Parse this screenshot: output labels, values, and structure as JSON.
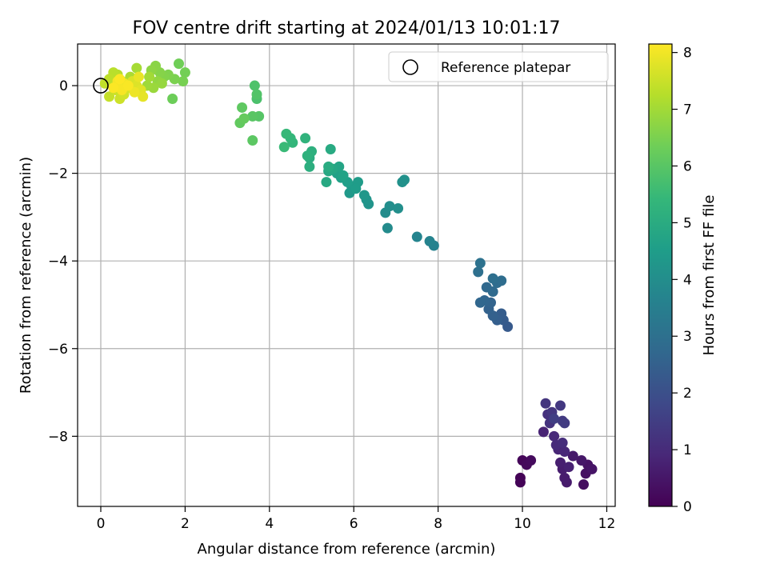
{
  "chart_data": {
    "type": "scatter",
    "title": "FOV centre drift starting at 2024/01/13 10:01:17",
    "xlabel": "Angular distance from reference (arcmin)",
    "ylabel": "Rotation from reference (arcmin)",
    "xlim": [
      -0.55,
      12.2
    ],
    "ylim": [
      -9.6,
      0.95
    ],
    "xticks": [
      0,
      2,
      4,
      6,
      8,
      10,
      12
    ],
    "yticks": [
      0,
      -2,
      -4,
      -6,
      -8
    ],
    "grid": true,
    "legend": {
      "position": "top-right",
      "entries": [
        {
          "label": "Reference platepar",
          "marker": "open-circle"
        }
      ]
    },
    "reference_point": {
      "x": 0.0,
      "y": 0.0
    },
    "colorbar": {
      "label": "Hours from first FF file",
      "colormap": "viridis",
      "range": [
        0,
        8.15
      ],
      "ticks": [
        0,
        1,
        2,
        3,
        4,
        5,
        6,
        7,
        8
      ]
    },
    "colormap_stops": [
      "#440154",
      "#482878",
      "#3e4989",
      "#31688e",
      "#26828e",
      "#1f9e89",
      "#35b779",
      "#6ece58",
      "#b5de2b",
      "#fde725"
    ],
    "points": [
      {
        "x": 9.95,
        "y": -8.95,
        "t": 0.05
      },
      {
        "x": 9.95,
        "y": -9.05,
        "t": 0.08
      },
      {
        "x": 10.0,
        "y": -8.55,
        "t": 0.12
      },
      {
        "x": 10.1,
        "y": -8.65,
        "t": 0.18
      },
      {
        "x": 10.2,
        "y": -8.55,
        "t": 0.22
      },
      {
        "x": 11.45,
        "y": -9.1,
        "t": 0.3
      },
      {
        "x": 11.5,
        "y": -8.85,
        "t": 0.35
      },
      {
        "x": 11.55,
        "y": -8.65,
        "t": 0.4
      },
      {
        "x": 11.65,
        "y": -8.75,
        "t": 0.45
      },
      {
        "x": 11.4,
        "y": -8.55,
        "t": 0.5
      },
      {
        "x": 11.2,
        "y": -8.45,
        "t": 0.55
      },
      {
        "x": 11.05,
        "y": -9.05,
        "t": 0.6
      },
      {
        "x": 11.0,
        "y": -8.95,
        "t": 0.62
      },
      {
        "x": 10.95,
        "y": -8.75,
        "t": 0.66
      },
      {
        "x": 10.9,
        "y": -8.6,
        "t": 0.7
      },
      {
        "x": 11.1,
        "y": -8.7,
        "t": 0.75
      },
      {
        "x": 10.5,
        "y": -7.9,
        "t": 0.8
      },
      {
        "x": 10.85,
        "y": -8.3,
        "t": 0.85
      },
      {
        "x": 11.0,
        "y": -8.35,
        "t": 0.9
      },
      {
        "x": 10.75,
        "y": -8.0,
        "t": 0.95
      },
      {
        "x": 10.8,
        "y": -8.2,
        "t": 1.0
      },
      {
        "x": 10.95,
        "y": -8.15,
        "t": 1.05
      },
      {
        "x": 10.7,
        "y": -7.6,
        "t": 1.1
      },
      {
        "x": 10.6,
        "y": -7.5,
        "t": 1.15
      },
      {
        "x": 10.65,
        "y": -7.7,
        "t": 1.2
      },
      {
        "x": 10.55,
        "y": -7.25,
        "t": 1.25
      },
      {
        "x": 10.7,
        "y": -7.45,
        "t": 1.3
      },
      {
        "x": 10.9,
        "y": -7.3,
        "t": 1.35
      },
      {
        "x": 10.95,
        "y": -7.65,
        "t": 1.4
      },
      {
        "x": 11.0,
        "y": -7.7,
        "t": 1.45
      },
      {
        "x": 10.75,
        "y": -7.6,
        "t": 1.5
      },
      {
        "x": 9.65,
        "y": -5.5,
        "t": 2.3
      },
      {
        "x": 9.55,
        "y": -5.35,
        "t": 2.35
      },
      {
        "x": 9.5,
        "y": -5.2,
        "t": 2.4
      },
      {
        "x": 9.4,
        "y": -5.35,
        "t": 2.45
      },
      {
        "x": 9.3,
        "y": -5.25,
        "t": 2.5
      },
      {
        "x": 9.2,
        "y": -5.1,
        "t": 2.55
      },
      {
        "x": 9.25,
        "y": -4.95,
        "t": 2.6
      },
      {
        "x": 9.1,
        "y": -4.9,
        "t": 2.65
      },
      {
        "x": 9.0,
        "y": -4.95,
        "t": 2.7
      },
      {
        "x": 9.15,
        "y": -4.6,
        "t": 2.75
      },
      {
        "x": 9.3,
        "y": -4.7,
        "t": 2.8
      },
      {
        "x": 9.4,
        "y": -4.5,
        "t": 2.85
      },
      {
        "x": 9.5,
        "y": -4.45,
        "t": 2.9
      },
      {
        "x": 9.3,
        "y": -4.4,
        "t": 2.95
      },
      {
        "x": 8.95,
        "y": -4.25,
        "t": 3.0
      },
      {
        "x": 9.0,
        "y": -4.05,
        "t": 3.05
      },
      {
        "x": 7.9,
        "y": -3.65,
        "t": 3.6
      },
      {
        "x": 7.8,
        "y": -3.55,
        "t": 3.65
      },
      {
        "x": 7.5,
        "y": -3.45,
        "t": 3.7
      },
      {
        "x": 6.8,
        "y": -3.25,
        "t": 3.9
      },
      {
        "x": 6.75,
        "y": -2.9,
        "t": 3.95
      },
      {
        "x": 6.85,
        "y": -2.75,
        "t": 4.0
      },
      {
        "x": 7.05,
        "y": -2.8,
        "t": 4.05
      },
      {
        "x": 7.15,
        "y": -2.2,
        "t": 4.1
      },
      {
        "x": 7.2,
        "y": -2.15,
        "t": 4.12
      },
      {
        "x": 6.35,
        "y": -2.7,
        "t": 4.2
      },
      {
        "x": 6.3,
        "y": -2.6,
        "t": 4.25
      },
      {
        "x": 6.25,
        "y": -2.5,
        "t": 4.3
      },
      {
        "x": 5.9,
        "y": -2.45,
        "t": 4.35
      },
      {
        "x": 5.95,
        "y": -2.3,
        "t": 4.4
      },
      {
        "x": 6.1,
        "y": -2.2,
        "t": 4.45
      },
      {
        "x": 6.05,
        "y": -2.35,
        "t": 4.5
      },
      {
        "x": 5.85,
        "y": -2.2,
        "t": 4.55
      },
      {
        "x": 5.7,
        "y": -2.1,
        "t": 4.6
      },
      {
        "x": 5.6,
        "y": -2.0,
        "t": 4.65
      },
      {
        "x": 5.75,
        "y": -2.05,
        "t": 4.7
      },
      {
        "x": 5.65,
        "y": -1.85,
        "t": 4.75
      },
      {
        "x": 5.5,
        "y": -1.9,
        "t": 4.8
      },
      {
        "x": 5.4,
        "y": -1.95,
        "t": 4.85
      },
      {
        "x": 5.35,
        "y": -2.2,
        "t": 4.9
      },
      {
        "x": 5.45,
        "y": -1.45,
        "t": 4.95
      },
      {
        "x": 5.4,
        "y": -1.85,
        "t": 5.0
      },
      {
        "x": 4.95,
        "y": -1.65,
        "t": 5.05
      },
      {
        "x": 4.95,
        "y": -1.85,
        "t": 5.1
      },
      {
        "x": 5.0,
        "y": -1.5,
        "t": 5.15
      },
      {
        "x": 4.9,
        "y": -1.6,
        "t": 5.2
      },
      {
        "x": 4.85,
        "y": -1.2,
        "t": 5.25
      },
      {
        "x": 4.55,
        "y": -1.3,
        "t": 5.35
      },
      {
        "x": 4.5,
        "y": -1.2,
        "t": 5.4
      },
      {
        "x": 4.4,
        "y": -1.1,
        "t": 5.45
      },
      {
        "x": 4.35,
        "y": -1.4,
        "t": 5.5
      },
      {
        "x": 3.7,
        "y": -0.3,
        "t": 5.8
      },
      {
        "x": 3.65,
        "y": 0.0,
        "t": 5.85
      },
      {
        "x": 3.7,
        "y": -0.2,
        "t": 5.9
      },
      {
        "x": 3.75,
        "y": -0.7,
        "t": 5.95
      },
      {
        "x": 3.6,
        "y": -0.7,
        "t": 6.0
      },
      {
        "x": 3.6,
        "y": -1.25,
        "t": 6.05
      },
      {
        "x": 3.35,
        "y": -0.5,
        "t": 6.1
      },
      {
        "x": 3.3,
        "y": -0.85,
        "t": 6.15
      },
      {
        "x": 3.4,
        "y": -0.75,
        "t": 6.2
      },
      {
        "x": 1.7,
        "y": -0.3,
        "t": 6.3
      },
      {
        "x": 1.85,
        "y": 0.5,
        "t": 6.35
      },
      {
        "x": 2.0,
        "y": 0.3,
        "t": 6.4
      },
      {
        "x": 1.95,
        "y": 0.1,
        "t": 6.45
      },
      {
        "x": 1.75,
        "y": 0.15,
        "t": 6.5
      },
      {
        "x": 1.6,
        "y": 0.25,
        "t": 6.55
      },
      {
        "x": 1.5,
        "y": 0.2,
        "t": 6.6
      },
      {
        "x": 1.4,
        "y": 0.3,
        "t": 6.65
      },
      {
        "x": 1.3,
        "y": 0.45,
        "t": 6.7
      },
      {
        "x": 1.2,
        "y": 0.35,
        "t": 6.75
      },
      {
        "x": 1.35,
        "y": 0.1,
        "t": 6.8
      },
      {
        "x": 1.45,
        "y": 0.05,
        "t": 6.85
      },
      {
        "x": 1.25,
        "y": -0.05,
        "t": 6.9
      },
      {
        "x": 1.1,
        "y": 0.0,
        "t": 6.95
      },
      {
        "x": 1.15,
        "y": 0.2,
        "t": 7.0
      },
      {
        "x": 0.85,
        "y": 0.4,
        "t": 7.05
      },
      {
        "x": 0.7,
        "y": 0.2,
        "t": 7.1
      },
      {
        "x": 0.6,
        "y": 0.05,
        "t": 7.15
      },
      {
        "x": 0.5,
        "y": 0.1,
        "t": 7.2
      },
      {
        "x": 0.4,
        "y": 0.25,
        "t": 7.25
      },
      {
        "x": 0.3,
        "y": 0.3,
        "t": 7.3
      },
      {
        "x": 0.2,
        "y": 0.15,
        "t": 7.35
      },
      {
        "x": 0.1,
        "y": 0.05,
        "t": 7.4
      },
      {
        "x": 0.2,
        "y": -0.25,
        "t": 7.45
      },
      {
        "x": 0.35,
        "y": -0.1,
        "t": 7.5
      },
      {
        "x": 0.45,
        "y": -0.3,
        "t": 7.55
      },
      {
        "x": 0.55,
        "y": -0.2,
        "t": 7.6
      },
      {
        "x": 0.65,
        "y": -0.05,
        "t": 7.65
      },
      {
        "x": 0.75,
        "y": 0.1,
        "t": 7.7
      },
      {
        "x": 0.85,
        "y": 0.0,
        "t": 7.75
      },
      {
        "x": 0.95,
        "y": -0.1,
        "t": 7.8
      },
      {
        "x": 1.0,
        "y": -0.25,
        "t": 7.85
      },
      {
        "x": 0.9,
        "y": 0.2,
        "t": 7.9
      },
      {
        "x": 0.8,
        "y": -0.15,
        "t": 7.95
      },
      {
        "x": 0.55,
        "y": 0.05,
        "t": 8.0
      },
      {
        "x": 0.4,
        "y": 0.1,
        "t": 8.05
      },
      {
        "x": 0.5,
        "y": -0.1,
        "t": 8.08
      },
      {
        "x": 0.65,
        "y": 0.0,
        "t": 8.1
      },
      {
        "x": 0.3,
        "y": -0.05,
        "t": 8.12
      },
      {
        "x": 0.45,
        "y": 0.15,
        "t": 8.14
      }
    ]
  }
}
